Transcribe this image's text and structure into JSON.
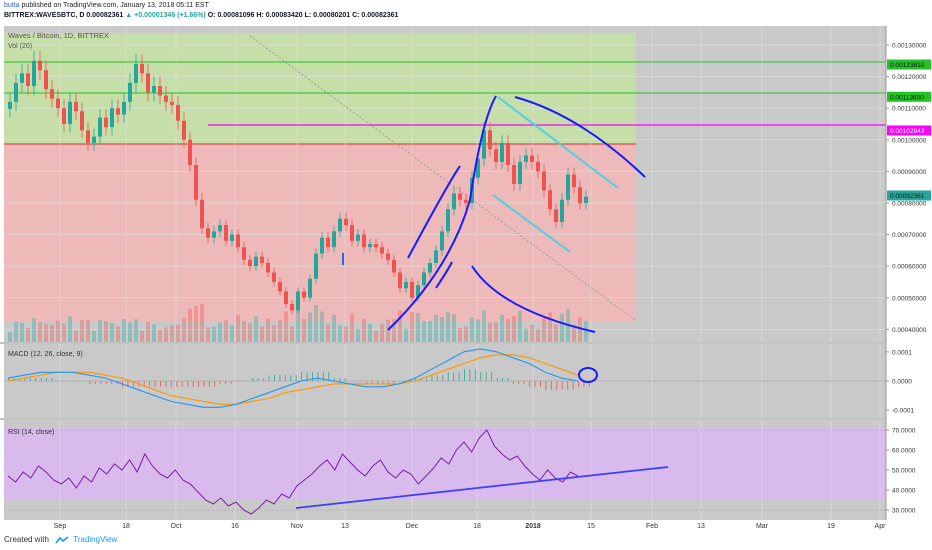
{
  "header": {
    "author": "butta",
    "published_text": "published on TradingView.com, January 13, 2018 05:11 EST",
    "symbol_line": "BITTREX:WAVESBTC, D",
    "last": "0.00082361",
    "change": "▲ +0.00001346 (+1.66%)",
    "ohlc": "O: 0.00081096 H: 0.00083420 L: 0.00080201 C: 0.00082361"
  },
  "footer": {
    "created_with": "Created with",
    "brand": "TradingView"
  },
  "colors": {
    "bull": "#26a69a",
    "bear": "#ef5350",
    "pane_bg": "#c9c9c9",
    "green_zone": "#c5e1a5",
    "red_zone": "#f4b6b6",
    "rsi_band": "#d9b8ef",
    "drawing_blue": "#1a1aff",
    "teal_channel": "#4dd0e1",
    "magenta": "#ff00ff",
    "green_line": "#22c322",
    "macd_line": "#2196f3",
    "signal_line": "#ff9800",
    "rsi_line": "#7b1fa2"
  },
  "chart_data": [
    {
      "type": "candlestick",
      "title": "Waves / Bitcoin, 1D, BITTREX",
      "legend": [
        "Vol (20)"
      ],
      "ylim": [
        0.00036,
        0.00136
      ],
      "y_ticks": [
        "0.00130000",
        "0.00120000",
        "0.00110000",
        "0.00100000",
        "0.00090000",
        "0.00080000",
        "0.00070000",
        "0.00060000",
        "0.00050000",
        "0.00040000"
      ],
      "x_ticks": [
        "Sep",
        "18",
        "Oct",
        "16",
        "Nov",
        "13",
        "Dec",
        "18",
        "2018",
        "15",
        "Feb",
        "13",
        "Mar",
        "19",
        "Apr"
      ],
      "price_labels": [
        {
          "value": 0.0012381,
          "text": "0.00123810",
          "color": "green"
        },
        {
          "value": 0.001136,
          "text": "0.00113600",
          "color": "green"
        },
        {
          "value": 0.00102943,
          "text": "0.00102943",
          "color": "magenta"
        },
        {
          "value": 0.00082361,
          "text": "0.00082361",
          "color": "teal"
        }
      ],
      "horizontal_lines": [
        0.0012381,
        0.001136,
        0.00102943
      ],
      "zones": [
        {
          "from": 0.00097,
          "to": 0.00135,
          "color": "green"
        },
        {
          "from": 0.00038,
          "to": 0.00097,
          "color": "red"
        }
      ],
      "close_series": [
        0.00112,
        0.00118,
        0.00121,
        0.00117,
        0.00125,
        0.00122,
        0.00116,
        0.00113,
        0.0011,
        0.00105,
        0.00112,
        0.00109,
        0.00103,
        0.00099,
        0.00101,
        0.00107,
        0.00104,
        0.0011,
        0.00108,
        0.00112,
        0.00118,
        0.00124,
        0.00121,
        0.00115,
        0.00117,
        0.00114,
        0.00112,
        0.00111,
        0.00106,
        0.001,
        0.00092,
        0.00081,
        0.00072,
        0.00069,
        0.00071,
        0.00073,
        0.00068,
        0.0007,
        0.00066,
        0.00062,
        0.0006,
        0.00063,
        0.00061,
        0.00058,
        0.00055,
        0.00052,
        0.00048,
        0.00046,
        0.00052,
        0.0005,
        0.00056,
        0.00064,
        0.00069,
        0.00066,
        0.00071,
        0.00075,
        0.00073,
        0.00068,
        0.0007,
        0.00066,
        0.00067,
        0.00066,
        0.00064,
        0.00062,
        0.00058,
        0.00053,
        0.00055,
        0.0005,
        0.00054,
        0.00058,
        0.00061,
        0.00065,
        0.00071,
        0.00078,
        0.00083,
        0.00081,
        0.0008,
        0.00088,
        0.00094,
        0.00103,
        0.00097,
        0.00093,
        0.00099,
        0.00092,
        0.00086,
        0.00093,
        0.00095,
        0.00093,
        0.0009,
        0.00084,
        0.00078,
        0.00074,
        0.00081,
        0.00089,
        0.00085,
        0.0008,
        0.00082
      ],
      "last": 0.00082361
    },
    {
      "type": "line",
      "title": "MACD (12, 26, close, 9)",
      "ylim": [
        -0.00012,
        0.00012
      ],
      "y_ticks": [
        "0.0001",
        "0.0000",
        "-0.0001"
      ],
      "series": [
        {
          "name": "MACD",
          "values": [
            1e-05,
            2e-05,
            3e-05,
            3e-05,
            3e-05,
            2e-05,
            1e-05,
            -1e-05,
            -3e-05,
            -5e-05,
            -7e-05,
            -8e-05,
            -9e-05,
            -9e-05,
            -8e-05,
            -6e-05,
            -4e-05,
            -2e-05,
            0.0,
            1e-05,
            0.0,
            -1e-05,
            -2e-05,
            -2e-05,
            -1e-05,
            1e-05,
            4e-05,
            7e-05,
            0.0001,
            0.00011,
            0.0001,
            8e-05,
            6e-05,
            3e-05,
            1e-05,
            -0.0
          ]
        },
        {
          "name": "Signal",
          "values": [
            0.0,
            1e-05,
            2e-05,
            3e-05,
            3e-05,
            3e-05,
            2e-05,
            1e-05,
            -1e-05,
            -3e-05,
            -5e-05,
            -6e-05,
            -7e-05,
            -8e-05,
            -8e-05,
            -7e-05,
            -6e-05,
            -4e-05,
            -3e-05,
            -2e-05,
            -1e-05,
            -1e-05,
            -1e-05,
            -1e-05,
            -1e-05,
            0.0,
            2e-05,
            4e-05,
            6e-05,
            8e-05,
            9e-05,
            9e-05,
            8e-05,
            6e-05,
            4e-05,
            2e-05
          ]
        }
      ]
    },
    {
      "type": "line",
      "title": "RSI (14, close)",
      "ylim": [
        25,
        75
      ],
      "y_ticks": [
        "70.0000",
        "60.0000",
        "50.0000",
        "40.0000",
        "30.0000"
      ],
      "band": [
        30,
        70
      ],
      "values": [
        47,
        44,
        49,
        46,
        52,
        49,
        45,
        43,
        46,
        41,
        47,
        44,
        51,
        48,
        53,
        50,
        55,
        49,
        58,
        52,
        48,
        46,
        50,
        45,
        43,
        39,
        35,
        33,
        36,
        32,
        34,
        30,
        28,
        31,
        35,
        33,
        38,
        36,
        42,
        45,
        48,
        52,
        55,
        50,
        58,
        54,
        50,
        47,
        52,
        55,
        49,
        46,
        50,
        48,
        43,
        47,
        51,
        56,
        53,
        60,
        64,
        59,
        66,
        70,
        62,
        58,
        55,
        57,
        52,
        48,
        45,
        50,
        46,
        44,
        49,
        47
      ]
    }
  ]
}
